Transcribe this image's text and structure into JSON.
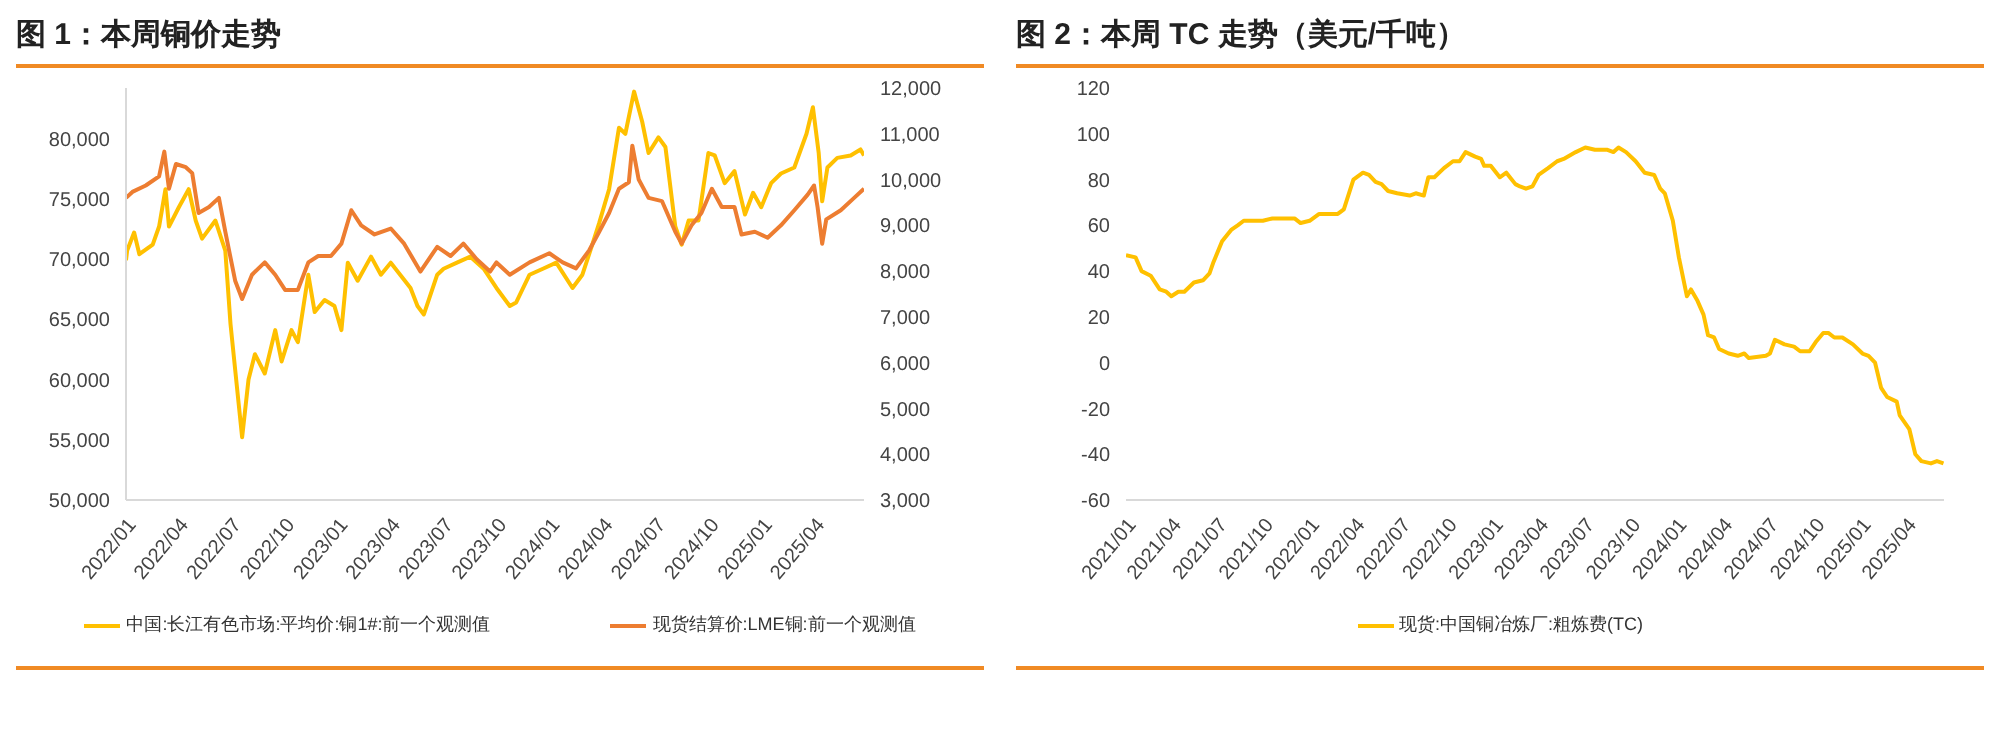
{
  "chart_data": [
    {
      "type": "line",
      "title": "图 1：本周铜价走势",
      "legend": "bottom",
      "xlim": [
        "2022-01-01",
        "2025-06-25"
      ],
      "xticks": [
        {
          "value": "2022-01-01",
          "label": "2022/01"
        },
        {
          "value": "2022-04-01",
          "label": "2022/04"
        },
        {
          "value": "2022-07-01",
          "label": "2022/07"
        },
        {
          "value": "2022-10-01",
          "label": "2022/10"
        },
        {
          "value": "2023-01-01",
          "label": "2023/01"
        },
        {
          "value": "2023-04-01",
          "label": "2023/04"
        },
        {
          "value": "2023-07-01",
          "label": "2023/07"
        },
        {
          "value": "2023-10-01",
          "label": "2023/10"
        },
        {
          "value": "2024-01-01",
          "label": "2024/01"
        },
        {
          "value": "2024-04-01",
          "label": "2024/04"
        },
        {
          "value": "2024-07-01",
          "label": "2024/07"
        },
        {
          "value": "2024-10-01",
          "label": "2024/10"
        },
        {
          "value": "2025-01-01",
          "label": "2025/01"
        },
        {
          "value": "2025-04-01",
          "label": "2025/04"
        }
      ],
      "ylim": [
        50000,
        84200
      ],
      "yticks": [
        {
          "value": 50000,
          "label": "50,000"
        },
        {
          "value": 55000,
          "label": "55,000"
        },
        {
          "value": 60000,
          "label": "60,000"
        },
        {
          "value": 65000,
          "label": "65,000"
        },
        {
          "value": 70000,
          "label": "70,000"
        },
        {
          "value": 75000,
          "label": "75,000"
        },
        {
          "value": 80000,
          "label": "80,000"
        }
      ],
      "y2lim": [
        3000,
        12000
      ],
      "y2ticks": [
        {
          "value": 3000,
          "label": "3,000"
        },
        {
          "value": 4000,
          "label": "4,000"
        },
        {
          "value": 5000,
          "label": "5,000"
        },
        {
          "value": 6000,
          "label": "6,000"
        },
        {
          "value": 7000,
          "label": "7,000"
        },
        {
          "value": 8000,
          "label": "8,000"
        },
        {
          "value": 9000,
          "label": "9,000"
        },
        {
          "value": 10000,
          "label": "10,000"
        },
        {
          "value": 11000,
          "label": "11,000"
        },
        {
          "value": 12000,
          "label": "12,000"
        }
      ],
      "series": [
        {
          "name": "中国:长江有色市场:平均价:铜1#:前一个观测值",
          "color": "#ffc000",
          "x": [
            "2022-01-01",
            "2022-01-03",
            "2022-01-15",
            "2022-01-24",
            "2022-02-16",
            "2022-02-27",
            "2022-03-10",
            "2022-03-16",
            "2022-04-02",
            "2022-04-19",
            "2022-05-01",
            "2022-05-12",
            "2022-06-04",
            "2022-06-21",
            "2022-06-30",
            "2022-07-14",
            "2022-07-20",
            "2022-07-31",
            "2022-08-11",
            "2022-08-28",
            "2022-09-15",
            "2022-09-26",
            "2022-10-13",
            "2022-10-24",
            "2022-11-11",
            "2022-11-22",
            "2022-12-09",
            "2022-12-26",
            "2023-01-07",
            "2023-01-18",
            "2023-02-04",
            "2023-02-27",
            "2023-03-16",
            "2023-04-02",
            "2023-05-06",
            "2023-05-18",
            "2023-05-29",
            "2023-06-21",
            "2023-07-02",
            "2023-07-25",
            "2023-08-17",
            "2023-09-09",
            "2023-10-01",
            "2023-10-24",
            "2023-11-04",
            "2023-11-27",
            "2023-12-20",
            "2024-01-12",
            "2024-02-09",
            "2024-02-26",
            "2024-03-14",
            "2024-03-26",
            "2024-04-12",
            "2024-04-29",
            "2024-05-10",
            "2024-05-25",
            "2024-06-08",
            "2024-06-19",
            "2024-07-06",
            "2024-07-18",
            "2024-08-04",
            "2024-08-15",
            "2024-08-27",
            "2024-09-13",
            "2024-09-30",
            "2024-10-11",
            "2024-10-28",
            "2024-11-14",
            "2024-12-02",
            "2024-12-16",
            "2024-12-30",
            "2025-01-16",
            "2025-02-02",
            "2025-02-25",
            "2025-03-18",
            "2025-03-29",
            "2025-04-08",
            "2025-04-14",
            "2025-04-23",
            "2025-05-10",
            "2025-06-02",
            "2025-06-19",
            "2025-06-25"
          ],
          "values": [
            69900,
            70700,
            72200,
            70400,
            71200,
            72700,
            75800,
            72700,
            74300,
            75800,
            73200,
            71700,
            73200,
            70700,
            64600,
            58000,
            55200,
            60000,
            62100,
            60500,
            64100,
            61500,
            64100,
            63100,
            68700,
            65600,
            66600,
            66100,
            64100,
            69700,
            68200,
            70200,
            68700,
            69700,
            67600,
            66100,
            65400,
            68700,
            69200,
            69700,
            70200,
            69200,
            67600,
            66100,
            66400,
            68700,
            69200,
            69700,
            67600,
            68700,
            71200,
            73000,
            75800,
            80900,
            80400,
            83900,
            81400,
            78800,
            80100,
            79300,
            72700,
            71200,
            73200,
            73200,
            78800,
            78600,
            76300,
            77300,
            73700,
            75500,
            74300,
            76300,
            77100,
            77600,
            80400,
            82600,
            78800,
            74800,
            77600,
            78400,
            78600,
            79100,
            78600
          ]
        },
        {
          "name": "现货结算价:LME铜:前一个观测值",
          "color": "#ed7d31",
          "axis": "y2",
          "x": [
            "2022-01-01",
            "2022-01-12",
            "2022-02-04",
            "2022-02-27",
            "2022-03-08",
            "2022-03-16",
            "2022-03-28",
            "2022-04-14",
            "2022-04-25",
            "2022-05-06",
            "2022-05-24",
            "2022-06-10",
            "2022-06-21",
            "2022-07-08",
            "2022-07-20",
            "2022-08-06",
            "2022-08-28",
            "2022-09-15",
            "2022-10-02",
            "2022-10-24",
            "2022-11-11",
            "2022-11-28",
            "2022-12-20",
            "2023-01-07",
            "2023-01-24",
            "2023-02-10",
            "2023-03-05",
            "2023-04-02",
            "2023-04-25",
            "2023-05-23",
            "2023-06-21",
            "2023-07-14",
            "2023-08-05",
            "2023-08-28",
            "2023-09-20",
            "2023-10-01",
            "2023-10-24",
            "2023-11-27",
            "2023-12-31",
            "2024-01-23",
            "2024-02-15",
            "2024-03-09",
            "2024-03-26",
            "2024-04-12",
            "2024-04-29",
            "2024-05-16",
            "2024-05-22",
            "2024-06-02",
            "2024-06-19",
            "2024-07-12",
            "2024-08-04",
            "2024-08-15",
            "2024-09-01",
            "2024-09-18",
            "2024-10-06",
            "2024-10-23",
            "2024-11-14",
            "2024-11-26",
            "2024-12-19",
            "2025-01-10",
            "2025-02-02",
            "2025-02-25",
            "2025-03-20",
            "2025-03-31",
            "2025-04-06",
            "2025-04-14",
            "2025-04-21",
            "2025-05-16",
            "2025-06-08",
            "2025-06-25"
          ],
          "values": [
            9600,
            9730,
            9870,
            10070,
            10610,
            9800,
            10340,
            10270,
            10140,
            9270,
            9400,
            9600,
            8860,
            7790,
            7390,
            7920,
            8190,
            7920,
            7590,
            7590,
            8190,
            8330,
            8330,
            8600,
            9330,
            9000,
            8800,
            8930,
            8600,
            7990,
            8530,
            8330,
            8600,
            8260,
            7990,
            8190,
            7920,
            8190,
            8390,
            8190,
            8060,
            8460,
            8860,
            9270,
            9800,
            9940,
            10740,
            10000,
            9600,
            9530,
            8860,
            8600,
            9000,
            9270,
            9800,
            9400,
            9400,
            8800,
            8860,
            8730,
            9000,
            9330,
            9670,
            9870,
            9400,
            8600,
            9130,
            9330,
            9600,
            9800
          ]
        }
      ]
    },
    {
      "type": "line",
      "title": "图 2：本周 TC 走势（美元/千吨）",
      "legend": "bottom",
      "xlim": [
        "2021-01-01",
        "2025-06-15"
      ],
      "xticks": [
        {
          "value": "2021-01-01",
          "label": "2021/01"
        },
        {
          "value": "2021-04-01",
          "label": "2021/04"
        },
        {
          "value": "2021-07-01",
          "label": "2021/07"
        },
        {
          "value": "2021-10-01",
          "label": "2021/10"
        },
        {
          "value": "2022-01-01",
          "label": "2022/01"
        },
        {
          "value": "2022-04-01",
          "label": "2022/04"
        },
        {
          "value": "2022-07-01",
          "label": "2022/07"
        },
        {
          "value": "2022-10-01",
          "label": "2022/10"
        },
        {
          "value": "2023-01-01",
          "label": "2023/01"
        },
        {
          "value": "2023-04-01",
          "label": "2023/04"
        },
        {
          "value": "2023-07-01",
          "label": "2023/07"
        },
        {
          "value": "2023-10-01",
          "label": "2023/10"
        },
        {
          "value": "2024-01-01",
          "label": "2024/01"
        },
        {
          "value": "2024-04-01",
          "label": "2024/04"
        },
        {
          "value": "2024-07-01",
          "label": "2024/07"
        },
        {
          "value": "2024-10-01",
          "label": "2024/10"
        },
        {
          "value": "2025-01-01",
          "label": "2025/01"
        },
        {
          "value": "2025-04-01",
          "label": "2025/04"
        }
      ],
      "ylim": [
        -60,
        120
      ],
      "yticks": [
        -60,
        -40,
        -20,
        0,
        20,
        40,
        60,
        80,
        100,
        120
      ],
      "series": [
        {
          "name": "现货:中国铜冶炼厂:粗炼费(TC)",
          "color": "#ffc000",
          "x": [
            "2021-01-01",
            "2021-01-20",
            "2021-02-01",
            "2021-02-19",
            "2021-03-09",
            "2021-03-22",
            "2021-04-01",
            "2021-04-15",
            "2021-04-27",
            "2021-05-16",
            "2021-06-03",
            "2021-06-16",
            "2021-06-24",
            "2021-07-11",
            "2021-07-29",
            "2021-08-11",
            "2021-08-23",
            "2021-09-30",
            "2021-10-19",
            "2021-12-02",
            "2021-12-14",
            "2022-01-01",
            "2022-01-20",
            "2022-02-26",
            "2022-03-10",
            "2022-03-29",
            "2022-04-17",
            "2022-04-29",
            "2022-05-12",
            "2022-05-24",
            "2022-06-06",
            "2022-06-24",
            "2022-07-19",
            "2022-07-31",
            "2022-08-16",
            "2022-08-25",
            "2022-09-06",
            "2022-09-25",
            "2022-10-13",
            "2022-10-26",
            "2022-11-07",
            "2022-11-26",
            "2022-12-08",
            "2022-12-14",
            "2022-12-27",
            "2023-01-14",
            "2023-01-27",
            "2023-02-14",
            "2023-02-23",
            "2023-03-07",
            "2023-03-20",
            "2023-04-01",
            "2023-04-20",
            "2023-05-08",
            "2023-05-21",
            "2023-06-14",
            "2023-07-03",
            "2023-07-22",
            "2023-08-16",
            "2023-08-28",
            "2023-09-07",
            "2023-09-22",
            "2023-10-11",
            "2023-10-29",
            "2023-11-17",
            "2023-11-29",
            "2023-12-08",
            "2023-12-24",
            "2024-01-05",
            "2024-01-21",
            "2024-01-29",
            "2024-02-11",
            "2024-02-23",
            "2024-03-03",
            "2024-03-15",
            "2024-03-25",
            "2024-04-13",
            "2024-05-01",
            "2024-05-14",
            "2024-05-23",
            "2024-06-26",
            "2024-07-04",
            "2024-07-14",
            "2024-08-02",
            "2024-08-21",
            "2024-09-02",
            "2024-09-21",
            "2024-10-03",
            "2024-10-18",
            "2024-10-28",
            "2024-11-09",
            "2024-11-25",
            "2024-12-16",
            "2025-01-04",
            "2025-01-16",
            "2025-01-29",
            "2025-02-10",
            "2025-02-22",
            "2025-03-13",
            "2025-03-19",
            "2025-04-07",
            "2025-04-19",
            "2025-05-01",
            "2025-05-20",
            "2025-06-01",
            "2025-06-14"
          ],
          "values": [
            47,
            46,
            40,
            38,
            32,
            31,
            29,
            31,
            31,
            35,
            36,
            39,
            44,
            53,
            58,
            60,
            62,
            62,
            63,
            63,
            61,
            62,
            65,
            65,
            67,
            80,
            83,
            82,
            79,
            78,
            75,
            74,
            73,
            74,
            73,
            81,
            81,
            85,
            88,
            88,
            92,
            90,
            89,
            86,
            86,
            81,
            83,
            78,
            77,
            76,
            77,
            82,
            85,
            88,
            89,
            92,
            94,
            93,
            93,
            92,
            94,
            92,
            88,
            83,
            82,
            76,
            74,
            62,
            46,
            29,
            32,
            27,
            21,
            12,
            11,
            6,
            4,
            3,
            4,
            2,
            3,
            4,
            10,
            8,
            7,
            5,
            5,
            9,
            13,
            13,
            11,
            11,
            8,
            4,
            3,
            0,
            -11,
            -15,
            -17,
            -23,
            -29,
            -40,
            -43,
            -44,
            -43,
            -44
          ]
        }
      ]
    }
  ]
}
